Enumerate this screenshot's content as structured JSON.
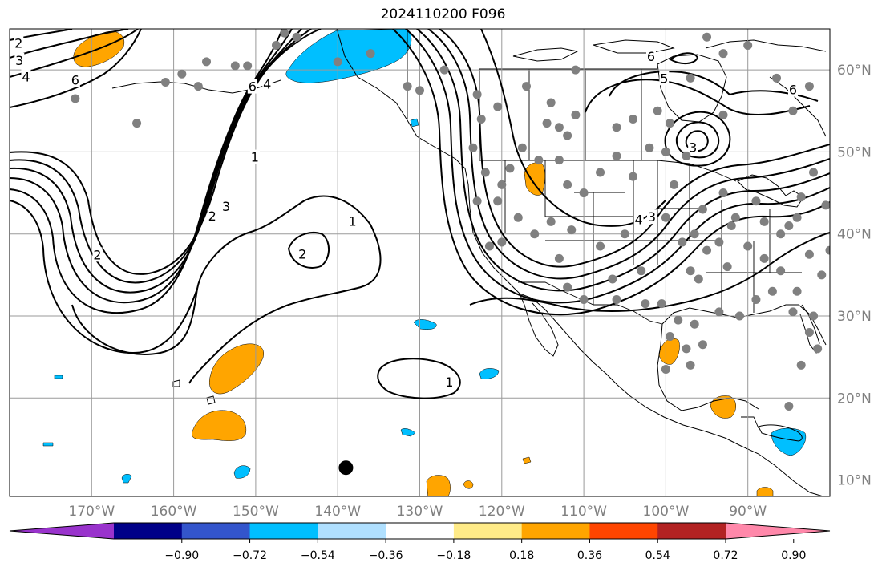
{
  "title": "2024110200 F096",
  "map": {
    "projection": "PlateCarree",
    "lon_range": [
      -180,
      -80
    ],
    "lat_range": [
      8,
      65
    ],
    "grid": true,
    "lon_ticks": [
      {
        "value": -170,
        "label": "170°W"
      },
      {
        "value": -160,
        "label": "160°W"
      },
      {
        "value": -150,
        "label": "150°W"
      },
      {
        "value": -140,
        "label": "140°W"
      },
      {
        "value": -130,
        "label": "130°W"
      },
      {
        "value": -120,
        "label": "120°W"
      },
      {
        "value": -110,
        "label": "110°W"
      },
      {
        "value": -100,
        "label": "100°W"
      },
      {
        "value": -90,
        "label": "90°W"
      }
    ],
    "lat_ticks": [
      {
        "value": 10,
        "label": "10°N"
      },
      {
        "value": 20,
        "label": "20°N"
      },
      {
        "value": 30,
        "label": "30°N"
      },
      {
        "value": 40,
        "label": "40°N"
      },
      {
        "value": 50,
        "label": "50°N"
      },
      {
        "value": 60,
        "label": "60°N"
      }
    ],
    "station_color": "#808080",
    "marker_color": "#000000",
    "contour_labels": [
      {
        "text": "1",
        "lon": -150.1,
        "lat": 49.3
      },
      {
        "text": "2",
        "lon": -155.3,
        "lat": 42.1
      },
      {
        "text": "3",
        "lon": -153.6,
        "lat": 43.3
      },
      {
        "text": "2",
        "lon": -169.3,
        "lat": 37.4
      },
      {
        "text": "1",
        "lon": -138.2,
        "lat": 41.5
      },
      {
        "text": "2",
        "lon": -144.3,
        "lat": 37.5
      },
      {
        "text": "1",
        "lon": -126.4,
        "lat": 21.9
      },
      {
        "text": "6",
        "lon": -150.4,
        "lat": 57.9
      },
      {
        "text": "4",
        "lon": -148.6,
        "lat": 58.2
      },
      {
        "text": "2",
        "lon": -178.9,
        "lat": 63.2
      },
      {
        "text": "3",
        "lon": -178.8,
        "lat": 61.1
      },
      {
        "text": "4",
        "lon": -178.0,
        "lat": 59.1
      },
      {
        "text": "6",
        "lon": -172.0,
        "lat": 58.7
      },
      {
        "text": "6",
        "lon": -101.8,
        "lat": 61.6
      },
      {
        "text": "5",
        "lon": -100.2,
        "lat": 58.9
      },
      {
        "text": "6",
        "lon": -84.5,
        "lat": 57.5
      },
      {
        "text": "3",
        "lon": -96.7,
        "lat": 50.5
      },
      {
        "text": "4",
        "lon": -103.3,
        "lat": 41.7
      },
      {
        "text": "3",
        "lon": -101.7,
        "lat": 42.0
      }
    ],
    "stations": [
      [
        -156,
        61
      ],
      [
        -161,
        58.5
      ],
      [
        -159,
        59.5
      ],
      [
        -172,
        56.5
      ],
      [
        -164.5,
        53.5
      ],
      [
        -157,
        58
      ],
      [
        -152.5,
        60.5
      ],
      [
        -147.5,
        63
      ],
      [
        -151,
        60.5
      ],
      [
        -146.5,
        64.5
      ],
      [
        -145,
        64
      ],
      [
        -140,
        61
      ],
      [
        -136,
        62
      ],
      [
        -131.5,
        58
      ],
      [
        -130,
        57.5
      ],
      [
        -127,
        60
      ],
      [
        -123,
        57
      ],
      [
        -122.5,
        54
      ],
      [
        -120.5,
        55.5
      ],
      [
        -123.5,
        50.5
      ],
      [
        -117,
        58
      ],
      [
        -111,
        60
      ],
      [
        -114,
        56
      ],
      [
        -114.5,
        53.5
      ],
      [
        -113,
        53
      ],
      [
        -112,
        52
      ],
      [
        -111,
        54.5
      ],
      [
        -106,
        53
      ],
      [
        -104,
        54
      ],
      [
        -101,
        55
      ],
      [
        -99.5,
        53.5
      ],
      [
        -97,
        59
      ],
      [
        -95,
        64
      ],
      [
        -93,
        62
      ],
      [
        -90,
        63
      ],
      [
        -86.5,
        59
      ],
      [
        -82.5,
        58
      ],
      [
        -84.5,
        55
      ],
      [
        -93,
        54.5
      ],
      [
        -97.5,
        49.5
      ],
      [
        -100,
        50
      ],
      [
        -102,
        50.5
      ],
      [
        -104,
        47
      ],
      [
        -106,
        49.5
      ],
      [
        -108,
        47.5
      ],
      [
        -110,
        45
      ],
      [
        -112,
        46
      ],
      [
        -113,
        49
      ],
      [
        -115.5,
        49
      ],
      [
        -117.5,
        50.5
      ],
      [
        -119,
        48
      ],
      [
        -122,
        47.5
      ],
      [
        -120,
        46
      ],
      [
        -118,
        42
      ],
      [
        -120.5,
        44
      ],
      [
        -123,
        44
      ],
      [
        -121.5,
        38.5
      ],
      [
        -120,
        39
      ],
      [
        -116,
        40
      ],
      [
        -114,
        41.5
      ],
      [
        -111.5,
        40.5
      ],
      [
        -113,
        37
      ],
      [
        -112,
        33.5
      ],
      [
        -110,
        32
      ],
      [
        -106.5,
        34.5
      ],
      [
        -108,
        38.5
      ],
      [
        -105,
        40
      ],
      [
        -103,
        35.5
      ],
      [
        -100,
        42
      ],
      [
        -98,
        39
      ],
      [
        -97,
        35.5
      ],
      [
        -95,
        38
      ],
      [
        -96.5,
        40
      ],
      [
        -95.5,
        43
      ],
      [
        -93,
        45
      ],
      [
        -91.5,
        42
      ],
      [
        -89,
        44
      ],
      [
        -88,
        41.5
      ],
      [
        -86,
        40
      ],
      [
        -84,
        42
      ],
      [
        -83.5,
        44.5
      ],
      [
        -82,
        47.5
      ],
      [
        -80.5,
        43.5
      ],
      [
        -86,
        35.5
      ],
      [
        -84,
        33
      ],
      [
        -87,
        33
      ],
      [
        -89,
        32
      ],
      [
        -91,
        30
      ],
      [
        -93.5,
        30.5
      ],
      [
        -96.5,
        29
      ],
      [
        -98.5,
        29.5
      ],
      [
        -100.5,
        31.5
      ],
      [
        -102.5,
        31.5
      ],
      [
        -106,
        32
      ],
      [
        -96,
        34.5
      ],
      [
        -95.5,
        26.5
      ],
      [
        -97.5,
        26
      ],
      [
        -99.5,
        27.5
      ],
      [
        -100,
        23.5
      ],
      [
        -97,
        24
      ],
      [
        -82.5,
        28
      ],
      [
        -81.5,
        26
      ],
      [
        -82,
        30
      ],
      [
        -84.5,
        30.5
      ],
      [
        -81,
        35
      ],
      [
        -85,
        41
      ],
      [
        -90,
        38.5
      ],
      [
        -88,
        37
      ],
      [
        -92.5,
        36
      ],
      [
        -93.5,
        39
      ],
      [
        -92,
        41
      ],
      [
        -80,
        38
      ],
      [
        -82.5,
        37.5
      ],
      [
        -83.5,
        24
      ],
      [
        -85,
        19
      ],
      [
        -99,
        46
      ]
    ],
    "marker": {
      "lon": -139,
      "lat": 11.5
    }
  },
  "colorbar": {
    "colors": [
      "#9933cc",
      "#000088",
      "#3355cc",
      "#00bfff",
      "#b0e0ff",
      "#ffffff",
      "#ffeb88",
      "#ffa500",
      "#ff4500",
      "#b22222",
      "#ff88aa"
    ],
    "ticks": [
      "−0.90",
      "−0.72",
      "−0.54",
      "−0.36",
      "−0.18",
      "0.18",
      "0.36",
      "0.54",
      "0.72",
      "0.90"
    ],
    "extend": "both"
  }
}
